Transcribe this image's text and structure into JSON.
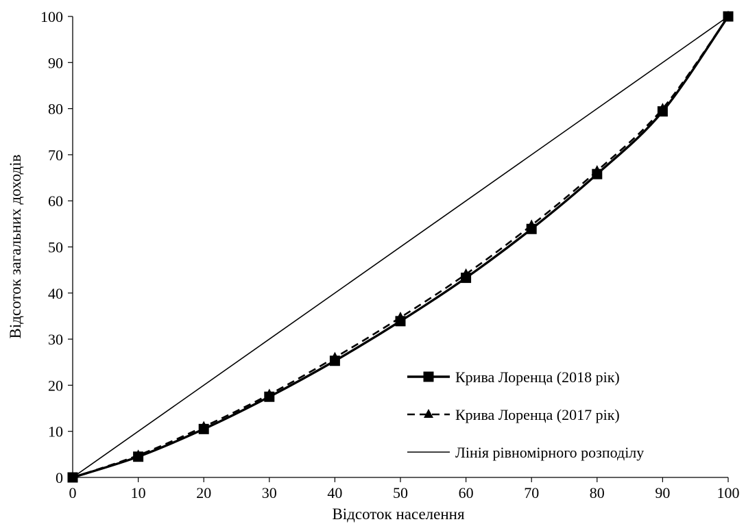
{
  "chart_data": {
    "type": "line",
    "xlabel": "Відсоток населення",
    "ylabel": "Відсоток загальних доходів",
    "xlim": [
      0,
      100
    ],
    "ylim": [
      0,
      100
    ],
    "x_ticks": [
      "0",
      "10",
      "20",
      "30",
      "40",
      "50",
      "60",
      "70",
      "80",
      "90",
      "100"
    ],
    "y_ticks": [
      "0",
      "10",
      "20",
      "30",
      "40",
      "50",
      "60",
      "70",
      "80",
      "90",
      "100"
    ],
    "grid": false,
    "legend_position": "bottom-right",
    "series": [
      {
        "name": "Крива Лоренца  (2018 рік)",
        "style": "solid-thick",
        "marker": "square",
        "color": "#000000",
        "x": [
          0,
          10,
          20,
          30,
          40,
          50,
          60,
          70,
          80,
          90,
          100
        ],
        "y": [
          0,
          4.5,
          10.5,
          17.5,
          25.3,
          33.9,
          43.3,
          53.9,
          65.8,
          79.4,
          100
        ]
      },
      {
        "name": "Крива Лоренца  (2017 рік)",
        "style": "dashed",
        "marker": "triangle",
        "color": "#000000",
        "x": [
          0,
          10,
          20,
          30,
          40,
          50,
          60,
          70,
          80,
          90,
          100
        ],
        "y": [
          0,
          4.8,
          11.0,
          18.0,
          26.0,
          34.7,
          44.1,
          54.7,
          66.5,
          80.0,
          100
        ]
      },
      {
        "name": "Лінія рівномірного розподілу",
        "style": "solid-thin",
        "marker": "none",
        "color": "#000000",
        "x": [
          0,
          100
        ],
        "y": [
          0,
          100
        ]
      }
    ]
  }
}
